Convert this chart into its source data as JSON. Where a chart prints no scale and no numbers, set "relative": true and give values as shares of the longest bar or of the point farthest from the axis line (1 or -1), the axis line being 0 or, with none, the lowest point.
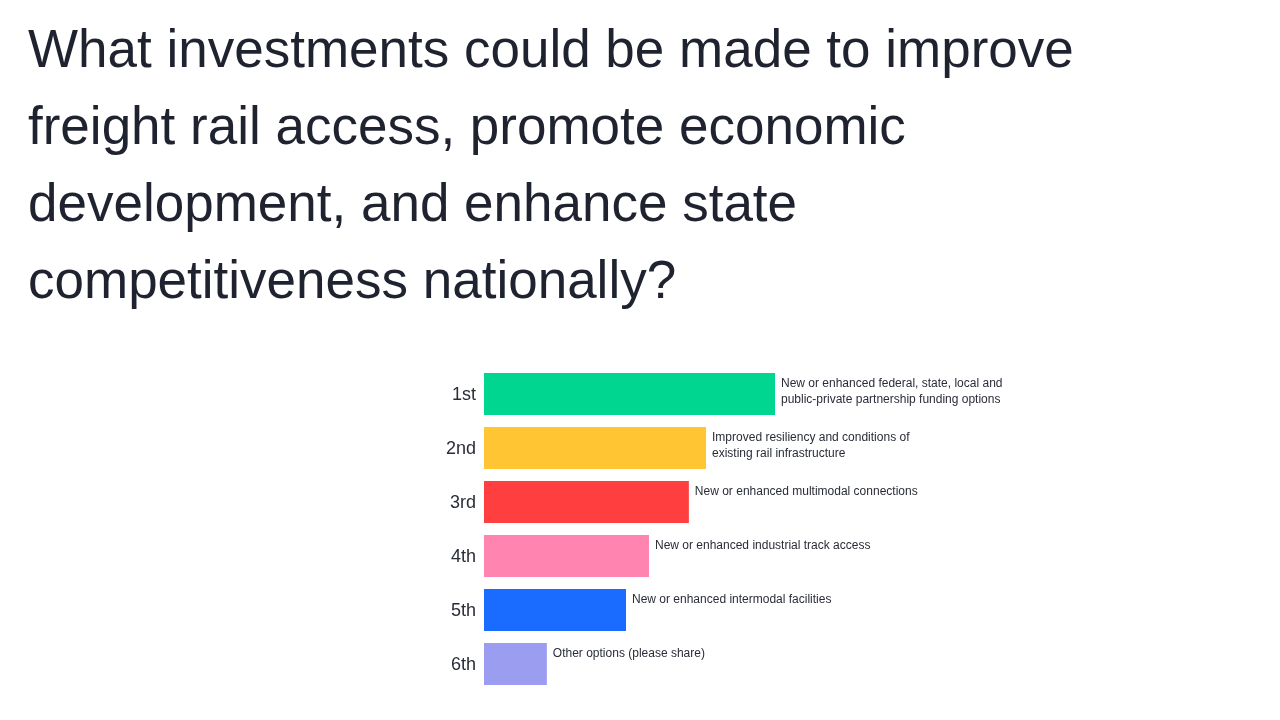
{
  "chart_data": {
    "type": "bar",
    "orientation": "horizontal",
    "relative": true,
    "title": "What investments could be made to improve freight rail access, promote economic development, and enhance state competitiveness nationally?",
    "categories": [
      "1st",
      "2nd",
      "3rd",
      "4th",
      "5th",
      "6th"
    ],
    "values": [
      1,
      0.763,
      0.704,
      0.567,
      0.488,
      0.216
    ],
    "colors": [
      "#00d68f",
      "#ffc532",
      "#ff3f3f",
      "#ff85b0",
      "#1a6bff",
      "#9b9ef0"
    ],
    "annotations": [
      {
        "text": "New or enhanced federal, state, local and public-private partnership funding options",
        "x": 1,
        "y": "1st"
      },
      {
        "text": "Improved resiliency and conditions of existing rail infrastructure",
        "x": 0.763,
        "y": "2nd"
      },
      {
        "text": "New or enhanced multimodal connections",
        "x": 0.704,
        "y": "3rd"
      },
      {
        "text": "New or enhanced industrial track access",
        "x": 0.567,
        "y": "4th"
      },
      {
        "text": "New or enhanced intermodal facilities",
        "x": 0.488,
        "y": "5th"
      },
      {
        "text": "Other options (please share)",
        "x": 0.216,
        "y": "6th"
      }
    ]
  }
}
